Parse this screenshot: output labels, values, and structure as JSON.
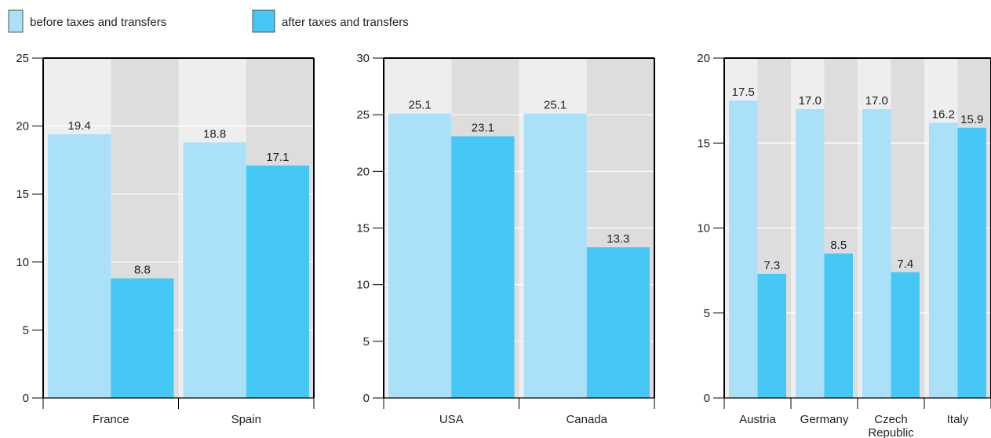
{
  "legend": {
    "items": [
      {
        "label": "before taxes and transfers",
        "color": "#abe0f9"
      },
      {
        "label": "after taxes and transfers",
        "color": "#45c8f5"
      }
    ]
  },
  "colors": {
    "before": "#abe0f9",
    "after": "#45c8f5",
    "band_light": "#eeeeee",
    "band_dark": "#dddddd",
    "gridline": "#ffffff",
    "axis": "#000000"
  },
  "chart_data": [
    {
      "type": "bar",
      "categories": [
        "France",
        "Spain"
      ],
      "series": [
        {
          "name": "before taxes and transfers",
          "values": [
            19.4,
            18.8
          ]
        },
        {
          "name": "after taxes and transfers",
          "values": [
            8.8,
            17.1
          ]
        }
      ],
      "data_labels": [
        [
          "19.4",
          "18.8"
        ],
        [
          "8.8",
          "17.1"
        ]
      ],
      "yticks": [
        0,
        5,
        10,
        15,
        20,
        25
      ],
      "ylim": [
        0,
        25
      ],
      "xlabel": "",
      "ylabel": "",
      "grid": true
    },
    {
      "type": "bar",
      "categories": [
        "USA",
        "Canada"
      ],
      "series": [
        {
          "name": "before taxes and transfers",
          "values": [
            25.1,
            25.1
          ]
        },
        {
          "name": "after taxes and transfers",
          "values": [
            23.1,
            13.3
          ]
        }
      ],
      "data_labels": [
        [
          "25.1",
          "25.1"
        ],
        [
          "23.1",
          "13.3"
        ]
      ],
      "yticks": [
        0,
        5,
        10,
        15,
        20,
        25,
        30
      ],
      "ylim": [
        0,
        30
      ],
      "xlabel": "",
      "ylabel": "",
      "grid": true
    },
    {
      "type": "bar",
      "categories": [
        "Austria",
        "Germany",
        "Czech Republic",
        "Italy"
      ],
      "series": [
        {
          "name": "before taxes and transfers",
          "values": [
            17.5,
            17.0,
            17.0,
            16.2
          ]
        },
        {
          "name": "after taxes and transfers",
          "values": [
            7.3,
            8.5,
            7.4,
            15.9
          ]
        }
      ],
      "data_labels": [
        [
          "17.5",
          "17.0",
          "17.0",
          "16.2"
        ],
        [
          "7.3",
          "8.5",
          "7.4",
          "15.9"
        ]
      ],
      "yticks": [
        0,
        5,
        10,
        15,
        20
      ],
      "ylim": [
        0,
        20
      ],
      "xlabel": "",
      "ylabel": "",
      "grid": true
    }
  ]
}
